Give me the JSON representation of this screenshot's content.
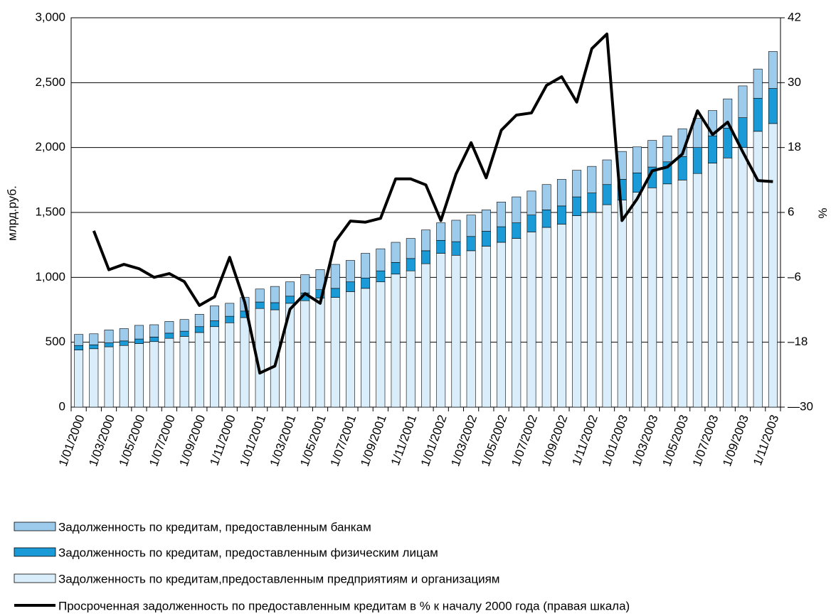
{
  "chart_data": {
    "type": "bar",
    "stacked": true,
    "ylabel": "млрд.руб.",
    "y2label": "%",
    "categories": [
      "1/01/2000",
      null,
      "1/03/2000",
      null,
      "1/05/2000",
      null,
      "1/07/2000",
      null,
      "1/09/2000",
      null,
      "1/11/2000",
      null,
      "1/01/2001",
      null,
      "1/03/2001",
      null,
      "1/05/2001",
      null,
      "1/07/2001",
      null,
      "1/09/2001",
      null,
      "1/11/2001",
      null,
      "1/01/2002",
      null,
      "1/03/2002",
      null,
      "1/05/2002",
      null,
      "1/07/2002",
      null,
      "1/09/2002",
      null,
      "1/11/2002",
      null,
      "1/01/2003",
      null,
      "1/03/2003",
      null,
      "1/05/2003",
      null,
      "1/07/2003",
      null,
      "1/09/2003",
      null,
      "1/11/2003"
    ],
    "ylim": [
      0,
      3000
    ],
    "yticks": [
      0,
      500,
      {
        "value": 1000,
        "label": "1,000"
      },
      {
        "value": 1500,
        "label": "1,500"
      },
      {
        "value": 2000,
        "label": "2,000"
      },
      {
        "value": 2500,
        "label": "2,500"
      },
      {
        "value": 3000,
        "label": "3,000"
      }
    ],
    "y2lim": [
      -30,
      42
    ],
    "y2ticks": [
      {
        "value": -30,
        "label": "—30"
      },
      {
        "value": -18,
        "label": "–18"
      },
      {
        "value": -6,
        "label": "–6"
      },
      6,
      18,
      30,
      42
    ],
    "grid": true,
    "series": [
      {
        "name": "Задолженность по кредитам,предоставленным предприятиям и организациям",
        "color": "#d9eefa",
        "type": "bar",
        "values": [
          440,
          450,
          465,
          475,
          490,
          505,
          530,
          545,
          575,
          620,
          650,
          690,
          760,
          750,
          800,
          820,
          840,
          845,
          890,
          915,
          965,
          1025,
          1050,
          1105,
          1185,
          1170,
          1205,
          1240,
          1270,
          1300,
          1350,
          1385,
          1410,
          1475,
          1500,
          1560,
          1595,
          1655,
          1690,
          1720,
          1750,
          1800,
          1880,
          1920,
          2000,
          2125,
          2185
        ]
      },
      {
        "name": "Задолженность по  кредитам, предоставленным физическим лицам",
        "color": "#1a9ad6",
        "type": "bar",
        "values": [
          35,
          30,
          30,
          35,
          35,
          35,
          40,
          40,
          45,
          45,
          50,
          50,
          50,
          55,
          55,
          60,
          65,
          70,
          75,
          80,
          85,
          90,
          95,
          100,
          100,
          105,
          110,
          115,
          120,
          120,
          130,
          135,
          140,
          145,
          150,
          155,
          160,
          150,
          160,
          170,
          180,
          200,
          210,
          230,
          230,
          255,
          270
        ]
      },
      {
        "name": "Задолженность по  кредитам, предоставленным банкам",
        "color": "#9dcbec",
        "type": "bar",
        "values": [
          85,
          85,
          100,
          95,
          105,
          95,
          90,
          90,
          95,
          115,
          100,
          105,
          100,
          125,
          110,
          140,
          155,
          185,
          165,
          190,
          170,
          155,
          155,
          160,
          135,
          165,
          165,
          165,
          190,
          200,
          185,
          195,
          205,
          205,
          205,
          190,
          215,
          200,
          205,
          200,
          215,
          225,
          195,
          225,
          245,
          225,
          285
        ]
      },
      {
        "name": "Просроченная задолженность по предоставленным кредитам  в % к началу 2000 года (правая шкала)",
        "color": "#000000",
        "type": "line",
        "axis": "y2",
        "values": [
          null,
          2.6,
          -4.6,
          -3.6,
          -4.4,
          -6.0,
          -5.3,
          -6.8,
          -11.2,
          -9.6,
          -2.3,
          -10.6,
          -23.7,
          -22.4,
          -11.9,
          -9.0,
          -10.8,
          0.6,
          4.4,
          4.2,
          4.9,
          12.2,
          12.2,
          11.1,
          4.5,
          13.1,
          18.9,
          12.4,
          21.2,
          24.0,
          24.4,
          29.5,
          31.1,
          26.4,
          36.3,
          39.0,
          4.5,
          8.5,
          13.7,
          14.4,
          16.8,
          24.8,
          20.4,
          22.7,
          17.2,
          11.9,
          11.7
        ]
      }
    ]
  }
}
